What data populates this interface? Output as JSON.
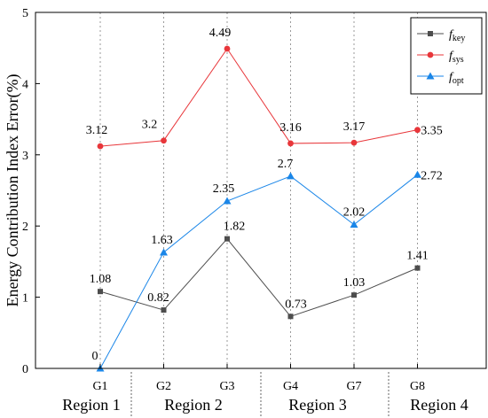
{
  "chart_data": {
    "type": "line",
    "categories": [
      "G1",
      "G2",
      "G3",
      "G4",
      "G7",
      "G8"
    ],
    "ylabel": "Energy Contribution Index Error(%)",
    "ylim": [
      0,
      5
    ],
    "yticks": [
      0,
      1,
      2,
      3,
      4,
      5
    ],
    "grid": "vertical dotted",
    "legend_position": "top-right",
    "series": [
      {
        "key": "key",
        "name_base": "f",
        "name_sub": "key",
        "color": "#4d4d4d",
        "marker": "square",
        "values": [
          1.08,
          0.82,
          1.82,
          0.73,
          1.03,
          1.41
        ],
        "labels": [
          "1.08",
          "0.82",
          "1.82",
          "0.73",
          "1.03",
          "1.41"
        ]
      },
      {
        "key": "sys",
        "name_base": "f",
        "name_sub": "sys",
        "color": "#e8363a",
        "marker": "circle",
        "values": [
          3.12,
          3.2,
          4.49,
          3.16,
          3.17,
          3.35
        ],
        "labels": [
          "3.12",
          "3.2",
          "4.49",
          "3.16",
          "3.17",
          "3.35"
        ]
      },
      {
        "key": "opt",
        "name_base": "f",
        "name_sub": "opt",
        "color": "#1a86e8",
        "marker": "triangle",
        "values": [
          0,
          1.63,
          2.35,
          2.7,
          2.02,
          2.72
        ],
        "labels": [
          "0",
          "1.63",
          "2.35",
          "2.7",
          "2.02",
          "2.72"
        ]
      }
    ],
    "regions": [
      "Region 1",
      "Region 2",
      "Region 3",
      "Region 4"
    ]
  }
}
